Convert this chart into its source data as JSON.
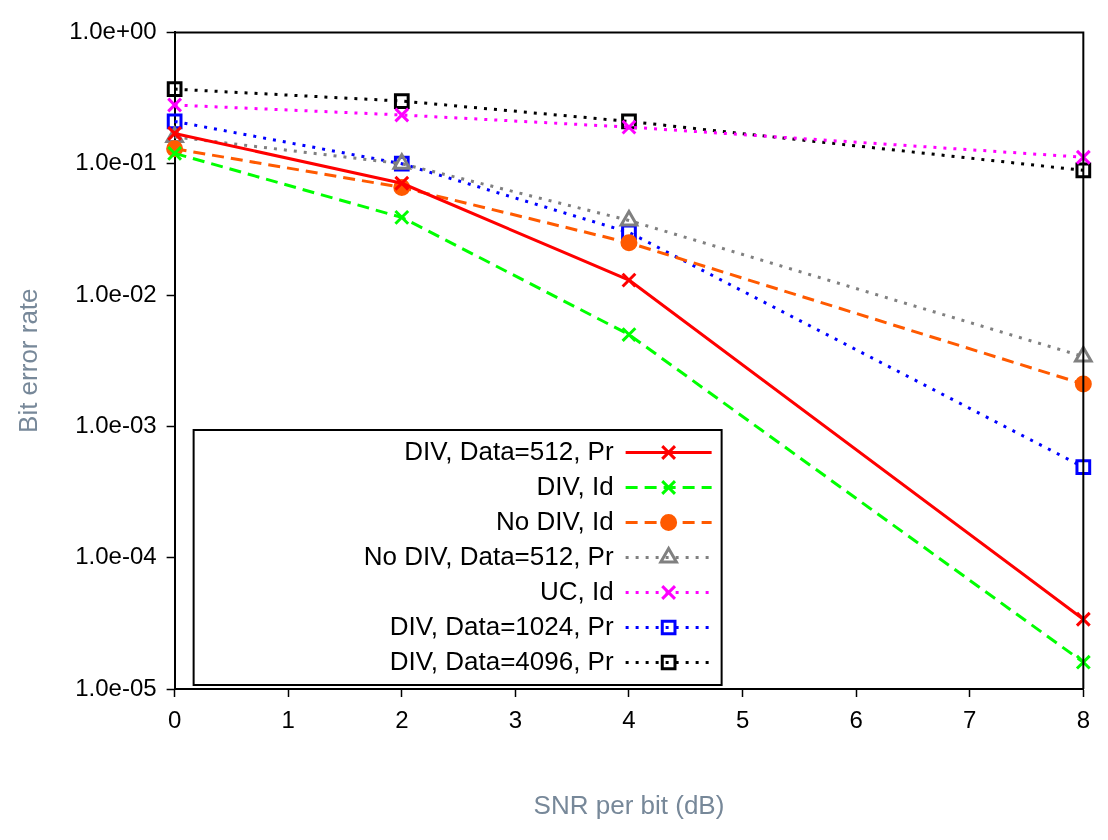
{
  "chart_data": {
    "type": "line",
    "xlabel": "SNR per bit (dB)",
    "ylabel": "Bit error rate",
    "x": [
      0,
      2,
      4,
      8
    ],
    "xlim": [
      0,
      8
    ],
    "xticks": [
      0,
      1,
      2,
      3,
      4,
      5,
      6,
      7,
      8
    ],
    "ylim": [
      1e-05,
      1
    ],
    "log": "y",
    "yticks": [
      {
        "value": 1e-05,
        "label": "1.0e-05"
      },
      {
        "value": 0.0001,
        "label": "1.0e-04"
      },
      {
        "value": 0.001,
        "label": "1.0e-03"
      },
      {
        "value": 0.01,
        "label": "1.0e-02"
      },
      {
        "value": 0.1,
        "label": "1.0e-01"
      },
      {
        "value": 1,
        "label": "1.0e+00"
      }
    ],
    "grid": false,
    "legend": "bottom left",
    "series": [
      {
        "name": "DIV, Data=512, Pr",
        "color": "#ff0000",
        "marker": "cross",
        "line_style": "solid",
        "values": [
          0.17,
          0.071,
          0.013,
          3.4e-05
        ]
      },
      {
        "name": "DIV, Id",
        "color": "#00ff00",
        "marker": "cross",
        "line_style": "dashed",
        "values": [
          0.12,
          0.039,
          0.005,
          1.6e-05
        ]
      },
      {
        "name": "No DIV, Id",
        "color": "#ff5a00",
        "marker": "circle",
        "line_style": "dashed",
        "values": [
          0.13,
          0.066,
          0.025,
          0.0021
        ]
      },
      {
        "name": "No DIV, Data=512, Pr",
        "color": "#808080",
        "marker": "triangle",
        "line_style": "dotted",
        "values": [
          0.16,
          0.1,
          0.037,
          0.0034
        ]
      },
      {
        "name": "UC, Id",
        "color": "#ff00ff",
        "marker": "cross",
        "line_style": "dotted",
        "values": [
          0.28,
          0.235,
          0.19,
          0.112
        ]
      },
      {
        "name": "DIV, Data=1024, Pr",
        "color": "#0000ff",
        "marker": "square",
        "line_style": "dotted",
        "values": [
          0.21,
          0.1,
          0.03,
          0.00049
        ]
      },
      {
        "name": "DIV, Data=4096, Pr",
        "color": "#000000",
        "marker": "square",
        "line_style": "dotted",
        "values": [
          0.37,
          0.3,
          0.21,
          0.089
        ]
      }
    ]
  }
}
